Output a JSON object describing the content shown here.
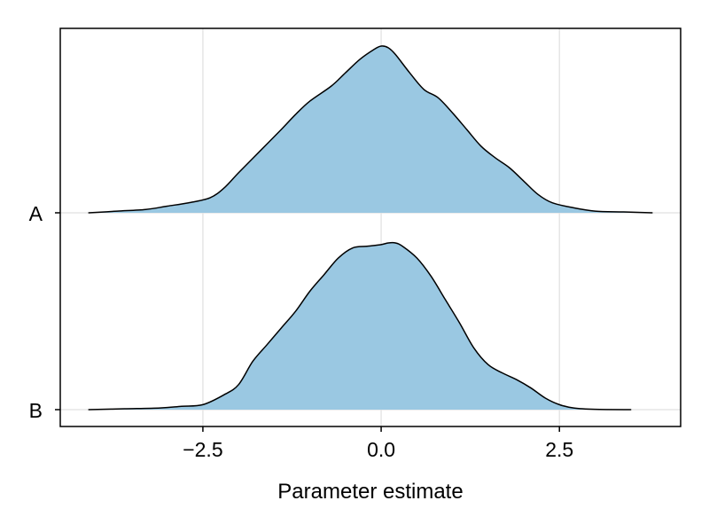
{
  "chart_data": {
    "type": "area",
    "subtype": "ridgeline-density",
    "title": "",
    "xlabel": "Parameter estimate",
    "ylabel": "",
    "xlim": [
      -4.5,
      4.2
    ],
    "xticks": [
      -2.5,
      0.0,
      2.5
    ],
    "xtick_labels": [
      "−2.5",
      "0.0",
      "2.5"
    ],
    "grid": true,
    "fill_color": "#9ac8e2",
    "line_color": "#000000",
    "grid_color": "#e5e5e5",
    "series": [
      {
        "name": "A",
        "x": [
          -4.1,
          -3.7,
          -3.3,
          -3.0,
          -2.7,
          -2.4,
          -2.2,
          -2.0,
          -1.7,
          -1.4,
          -1.2,
          -1.0,
          -0.7,
          -0.5,
          -0.3,
          -0.1,
          0.0,
          0.1,
          0.2,
          0.4,
          0.6,
          0.8,
          1.0,
          1.2,
          1.4,
          1.6,
          1.8,
          2.0,
          2.2,
          2.4,
          2.7,
          3.0,
          3.4,
          3.8
        ],
        "density": [
          0.0,
          0.01,
          0.02,
          0.04,
          0.06,
          0.09,
          0.15,
          0.24,
          0.37,
          0.5,
          0.59,
          0.67,
          0.76,
          0.84,
          0.92,
          0.98,
          1.0,
          0.99,
          0.95,
          0.84,
          0.74,
          0.69,
          0.6,
          0.5,
          0.4,
          0.33,
          0.27,
          0.19,
          0.11,
          0.06,
          0.03,
          0.01,
          0.005,
          0.0
        ]
      },
      {
        "name": "B",
        "x": [
          -4.1,
          -3.6,
          -3.1,
          -2.8,
          -2.5,
          -2.2,
          -2.0,
          -1.8,
          -1.6,
          -1.4,
          -1.2,
          -1.0,
          -0.8,
          -0.6,
          -0.4,
          -0.2,
          0.0,
          0.1,
          0.2,
          0.3,
          0.5,
          0.7,
          0.9,
          1.1,
          1.3,
          1.5,
          1.7,
          1.9,
          2.1,
          2.3,
          2.5,
          2.7,
          3.0,
          3.5
        ],
        "density": [
          0.0,
          0.005,
          0.01,
          0.02,
          0.03,
          0.09,
          0.15,
          0.29,
          0.39,
          0.49,
          0.59,
          0.71,
          0.81,
          0.91,
          0.97,
          0.98,
          0.99,
          1.0,
          1.0,
          0.98,
          0.91,
          0.8,
          0.66,
          0.52,
          0.37,
          0.27,
          0.22,
          0.18,
          0.13,
          0.07,
          0.03,
          0.01,
          0.002,
          0.0
        ]
      }
    ]
  }
}
